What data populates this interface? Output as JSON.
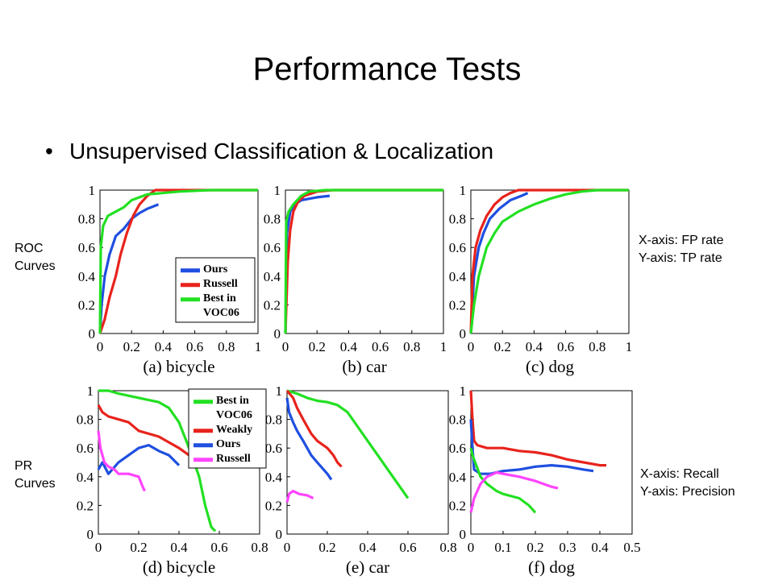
{
  "slide": {
    "title": "Performance Tests",
    "bullet_symbol": "•",
    "bullet": "Unsupervised Classification & Localization",
    "row_labels": [
      "ROC\nCurves",
      "PR\nCurves"
    ],
    "notes": [
      "X-axis: FP rate\nY-axis: TP rate",
      "X-axis: Recall\nY-axis: Precision"
    ]
  },
  "colors": {
    "Ours": "#1f4fe0",
    "Russell": "#e8231c",
    "Best in VOC06": "#22e022",
    "Weakly": "#e8231c",
    "Russell_pr": "#ff44ff"
  },
  "chart_data": [
    {
      "type": "line",
      "panel": "(a) bicycle",
      "xlim": [
        0,
        1
      ],
      "ylim": [
        0,
        1
      ],
      "xticks": [
        "0",
        "0.2",
        "0.4",
        "0.6",
        "0.8",
        "1"
      ],
      "yticks": [
        "0",
        "0.2",
        "0.4",
        "0.6",
        "0.8",
        "1"
      ],
      "legend": "bottom-right",
      "series": [
        {
          "name": "Ours",
          "color": "#1f4fe0",
          "points": [
            [
              0,
              0
            ],
            [
              0.01,
              0.2
            ],
            [
              0.03,
              0.4
            ],
            [
              0.06,
              0.55
            ],
            [
              0.1,
              0.68
            ],
            [
              0.15,
              0.73
            ],
            [
              0.2,
              0.8
            ],
            [
              0.25,
              0.84
            ],
            [
              0.3,
              0.87
            ],
            [
              0.37,
              0.9
            ]
          ]
        },
        {
          "name": "Russell",
          "color": "#e8231c",
          "points": [
            [
              0,
              0
            ],
            [
              0.03,
              0.1
            ],
            [
              0.06,
              0.25
            ],
            [
              0.1,
              0.4
            ],
            [
              0.13,
              0.55
            ],
            [
              0.17,
              0.7
            ],
            [
              0.21,
              0.82
            ],
            [
              0.25,
              0.9
            ],
            [
              0.3,
              0.96
            ],
            [
              0.35,
              1
            ],
            [
              1,
              1
            ]
          ]
        },
        {
          "name": "Best in VOC06",
          "color": "#22e022",
          "points": [
            [
              0,
              0
            ],
            [
              0.005,
              0.6
            ],
            [
              0.02,
              0.75
            ],
            [
              0.05,
              0.82
            ],
            [
              0.1,
              0.85
            ],
            [
              0.15,
              0.88
            ],
            [
              0.2,
              0.93
            ],
            [
              0.3,
              0.97
            ],
            [
              0.5,
              0.99
            ],
            [
              0.7,
              1
            ],
            [
              1,
              1
            ]
          ]
        }
      ]
    },
    {
      "type": "line",
      "panel": "(b) car",
      "xlim": [
        0,
        1
      ],
      "ylim": [
        0,
        1
      ],
      "xticks": [
        "0",
        "0.2",
        "0.4",
        "0.6",
        "0.8",
        "1"
      ],
      "yticks": [
        "0",
        "0.2",
        "0.4",
        "0.6",
        "0.8",
        "1"
      ],
      "series": [
        {
          "name": "Ours",
          "color": "#1f4fe0",
          "points": [
            [
              0,
              0
            ],
            [
              0.01,
              0.7
            ],
            [
              0.03,
              0.85
            ],
            [
              0.06,
              0.9
            ],
            [
              0.1,
              0.93
            ],
            [
              0.15,
              0.94
            ],
            [
              0.2,
              0.95
            ],
            [
              0.28,
              0.96
            ]
          ]
        },
        {
          "name": "Russell",
          "color": "#e8231c",
          "points": [
            [
              0,
              0
            ],
            [
              0.015,
              0.5
            ],
            [
              0.03,
              0.72
            ],
            [
              0.05,
              0.85
            ],
            [
              0.08,
              0.92
            ],
            [
              0.12,
              0.96
            ],
            [
              0.2,
              0.99
            ],
            [
              0.3,
              1
            ],
            [
              1,
              1
            ]
          ]
        },
        {
          "name": "Best in VOC06",
          "color": "#22e022",
          "points": [
            [
              0,
              0
            ],
            [
              0.005,
              0.78
            ],
            [
              0.02,
              0.85
            ],
            [
              0.05,
              0.9
            ],
            [
              0.1,
              0.96
            ],
            [
              0.15,
              0.99
            ],
            [
              0.25,
              1
            ],
            [
              1,
              1
            ]
          ]
        }
      ]
    },
    {
      "type": "line",
      "panel": "(c) dog",
      "xlim": [
        0,
        1
      ],
      "ylim": [
        0,
        1
      ],
      "xticks": [
        "0",
        "0.2",
        "0.4",
        "0.6",
        "0.8",
        "1"
      ],
      "yticks": [
        "0",
        "0.2",
        "0.4",
        "0.6",
        "0.8",
        "1"
      ],
      "series": [
        {
          "name": "Ours",
          "color": "#1f4fe0",
          "points": [
            [
              0,
              0
            ],
            [
              0.02,
              0.4
            ],
            [
              0.05,
              0.6
            ],
            [
              0.08,
              0.7
            ],
            [
              0.12,
              0.8
            ],
            [
              0.18,
              0.87
            ],
            [
              0.25,
              0.93
            ],
            [
              0.32,
              0.96
            ],
            [
              0.36,
              0.98
            ]
          ]
        },
        {
          "name": "Russell",
          "color": "#e8231c",
          "points": [
            [
              0,
              0
            ],
            [
              0.01,
              0.4
            ],
            [
              0.03,
              0.6
            ],
            [
              0.06,
              0.72
            ],
            [
              0.1,
              0.82
            ],
            [
              0.15,
              0.9
            ],
            [
              0.2,
              0.95
            ],
            [
              0.25,
              0.98
            ],
            [
              0.3,
              1
            ],
            [
              1,
              1
            ]
          ]
        },
        {
          "name": "Best in VOC06",
          "color": "#22e022",
          "points": [
            [
              0,
              0
            ],
            [
              0.02,
              0.2
            ],
            [
              0.05,
              0.4
            ],
            [
              0.1,
              0.6
            ],
            [
              0.15,
              0.7
            ],
            [
              0.2,
              0.78
            ],
            [
              0.3,
              0.85
            ],
            [
              0.4,
              0.9
            ],
            [
              0.5,
              0.94
            ],
            [
              0.6,
              0.97
            ],
            [
              0.7,
              0.99
            ],
            [
              0.8,
              1
            ],
            [
              1,
              1
            ]
          ]
        }
      ]
    },
    {
      "type": "line",
      "panel": "(d) bicycle",
      "xlim": [
        0,
        0.8
      ],
      "ylim": [
        0,
        1
      ],
      "xticks": [
        "0",
        "0.2",
        "0.4",
        "0.6",
        "0.8"
      ],
      "yticks": [
        "0",
        "0.2",
        "0.4",
        "0.6",
        "0.8",
        "1"
      ],
      "legend": "top-right",
      "series": [
        {
          "name": "Best in VOC06",
          "color": "#22e022",
          "points": [
            [
              0,
              1
            ],
            [
              0.05,
              1
            ],
            [
              0.1,
              0.98
            ],
            [
              0.2,
              0.95
            ],
            [
              0.3,
              0.92
            ],
            [
              0.35,
              0.88
            ],
            [
              0.4,
              0.78
            ],
            [
              0.45,
              0.6
            ],
            [
              0.5,
              0.4
            ],
            [
              0.53,
              0.2
            ],
            [
              0.56,
              0.05
            ],
            [
              0.58,
              0.02
            ]
          ]
        },
        {
          "name": "Weakly",
          "color": "#e8231c",
          "points": [
            [
              0,
              0.9
            ],
            [
              0.02,
              0.85
            ],
            [
              0.05,
              0.82
            ],
            [
              0.1,
              0.8
            ],
            [
              0.15,
              0.78
            ],
            [
              0.2,
              0.72
            ],
            [
              0.3,
              0.68
            ],
            [
              0.35,
              0.64
            ],
            [
              0.4,
              0.6
            ],
            [
              0.45,
              0.55
            ],
            [
              0.47,
              0.5
            ]
          ]
        },
        {
          "name": "Ours",
          "color": "#1f4fe0",
          "points": [
            [
              0,
              0.45
            ],
            [
              0.02,
              0.5
            ],
            [
              0.05,
              0.42
            ],
            [
              0.1,
              0.5
            ],
            [
              0.15,
              0.55
            ],
            [
              0.2,
              0.6
            ],
            [
              0.25,
              0.62
            ],
            [
              0.3,
              0.58
            ],
            [
              0.35,
              0.55
            ],
            [
              0.4,
              0.48
            ]
          ]
        },
        {
          "name": "Russell",
          "color": "#ff44ff",
          "points": [
            [
              0,
              0.72
            ],
            [
              0.01,
              0.6
            ],
            [
              0.02,
              0.55
            ],
            [
              0.03,
              0.5
            ],
            [
              0.05,
              0.47
            ],
            [
              0.08,
              0.45
            ],
            [
              0.1,
              0.42
            ],
            [
              0.15,
              0.42
            ],
            [
              0.2,
              0.4
            ],
            [
              0.22,
              0.33
            ],
            [
              0.23,
              0.3
            ]
          ]
        }
      ]
    },
    {
      "type": "line",
      "panel": "(e) car",
      "xlim": [
        0,
        0.8
      ],
      "ylim": [
        0,
        1
      ],
      "xticks": [
        "0",
        "0.2",
        "0.4",
        "0.6",
        "0.8"
      ],
      "yticks": [
        "0",
        "0.2",
        "0.4",
        "0.6",
        "0.8",
        "1"
      ],
      "series": [
        {
          "name": "Best in VOC06",
          "color": "#22e022",
          "points": [
            [
              0,
              1
            ],
            [
              0.05,
              0.98
            ],
            [
              0.1,
              0.95
            ],
            [
              0.15,
              0.93
            ],
            [
              0.2,
              0.92
            ],
            [
              0.25,
              0.9
            ],
            [
              0.3,
              0.85
            ],
            [
              0.35,
              0.75
            ],
            [
              0.4,
              0.65
            ],
            [
              0.45,
              0.55
            ],
            [
              0.5,
              0.45
            ],
            [
              0.55,
              0.35
            ],
            [
              0.6,
              0.25
            ]
          ]
        },
        {
          "name": "Weakly",
          "color": "#e8231c",
          "points": [
            [
              0,
              1
            ],
            [
              0.03,
              0.95
            ],
            [
              0.05,
              0.88
            ],
            [
              0.08,
              0.8
            ],
            [
              0.1,
              0.75
            ],
            [
              0.12,
              0.7
            ],
            [
              0.15,
              0.65
            ],
            [
              0.2,
              0.6
            ],
            [
              0.23,
              0.55
            ],
            [
              0.25,
              0.5
            ],
            [
              0.27,
              0.47
            ]
          ]
        },
        {
          "name": "Ours",
          "color": "#1f4fe0",
          "points": [
            [
              0,
              0.95
            ],
            [
              0.01,
              0.85
            ],
            [
              0.03,
              0.78
            ],
            [
              0.05,
              0.72
            ],
            [
              0.08,
              0.65
            ],
            [
              0.12,
              0.55
            ],
            [
              0.15,
              0.5
            ],
            [
              0.2,
              0.42
            ],
            [
              0.22,
              0.38
            ]
          ]
        },
        {
          "name": "Russell",
          "color": "#ff44ff",
          "points": [
            [
              0,
              0.22
            ],
            [
              0.01,
              0.28
            ],
            [
              0.03,
              0.3
            ],
            [
              0.06,
              0.28
            ],
            [
              0.1,
              0.27
            ],
            [
              0.13,
              0.25
            ]
          ]
        }
      ]
    },
    {
      "type": "line",
      "panel": "(f) dog",
      "xlim": [
        0,
        0.5
      ],
      "ylim": [
        0,
        1
      ],
      "xticks": [
        "0",
        "0.1",
        "0.2",
        "0.3",
        "0.4",
        "0.5"
      ],
      "yticks": [
        "0",
        "0.2",
        "0.4",
        "0.6",
        "0.8",
        "1"
      ],
      "series": [
        {
          "name": "Weakly",
          "color": "#e8231c",
          "points": [
            [
              0,
              1
            ],
            [
              0.005,
              0.8
            ],
            [
              0.01,
              0.65
            ],
            [
              0.02,
              0.62
            ],
            [
              0.05,
              0.6
            ],
            [
              0.1,
              0.6
            ],
            [
              0.15,
              0.58
            ],
            [
              0.2,
              0.57
            ],
            [
              0.25,
              0.55
            ],
            [
              0.3,
              0.52
            ],
            [
              0.35,
              0.5
            ],
            [
              0.4,
              0.48
            ],
            [
              0.42,
              0.48
            ]
          ]
        },
        {
          "name": "Ours",
          "color": "#1f4fe0",
          "points": [
            [
              0,
              0.8
            ],
            [
              0.005,
              0.6
            ],
            [
              0.01,
              0.45
            ],
            [
              0.03,
              0.42
            ],
            [
              0.06,
              0.42
            ],
            [
              0.1,
              0.44
            ],
            [
              0.15,
              0.45
            ],
            [
              0.2,
              0.47
            ],
            [
              0.25,
              0.48
            ],
            [
              0.3,
              0.47
            ],
            [
              0.35,
              0.45
            ],
            [
              0.38,
              0.44
            ]
          ]
        },
        {
          "name": "Best in VOC06",
          "color": "#22e022",
          "points": [
            [
              0,
              0.6
            ],
            [
              0.005,
              0.55
            ],
            [
              0.01,
              0.52
            ],
            [
              0.03,
              0.4
            ],
            [
              0.05,
              0.35
            ],
            [
              0.08,
              0.3
            ],
            [
              0.1,
              0.28
            ],
            [
              0.15,
              0.25
            ],
            [
              0.18,
              0.2
            ],
            [
              0.2,
              0.15
            ]
          ]
        },
        {
          "name": "Russell",
          "color": "#ff44ff",
          "points": [
            [
              0,
              0.15
            ],
            [
              0.01,
              0.25
            ],
            [
              0.03,
              0.35
            ],
            [
              0.05,
              0.4
            ],
            [
              0.08,
              0.43
            ],
            [
              0.1,
              0.42
            ],
            [
              0.15,
              0.4
            ],
            [
              0.2,
              0.37
            ],
            [
              0.25,
              0.33
            ],
            [
              0.27,
              0.32
            ]
          ]
        }
      ]
    }
  ]
}
